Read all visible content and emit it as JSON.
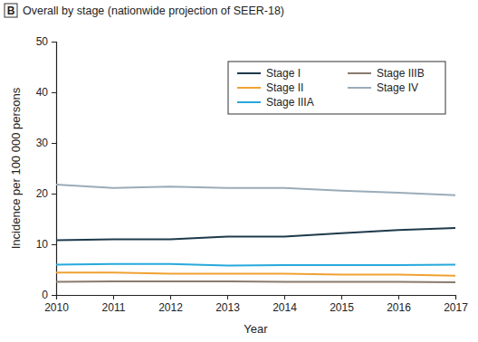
{
  "chart_data": {
    "type": "line",
    "title": "Overall by stage (nationwide projection of SEER-18)",
    "annotations": [
      "B"
    ],
    "x_label": "Year",
    "y_label": "Incidence per 100 000 persons",
    "x": [
      2010,
      2011,
      2012,
      2013,
      2014,
      2015,
      2016,
      2017
    ],
    "series": [
      {
        "name": "Stage I",
        "color": "#1e3a4c",
        "values": [
          10.8,
          11.0,
          11.0,
          11.5,
          11.5,
          12.2,
          12.8,
          13.2
        ]
      },
      {
        "name": "Stage II",
        "color": "#f0a132",
        "values": [
          4.4,
          4.4,
          4.2,
          4.2,
          4.2,
          4.0,
          4.0,
          3.8
        ]
      },
      {
        "name": "Stage IIIA",
        "color": "#27a9dc",
        "values": [
          6.0,
          6.1,
          6.1,
          5.8,
          5.9,
          5.9,
          5.9,
          6.0
        ]
      },
      {
        "name": "Stage IIIB",
        "color": "#8a7b6c",
        "values": [
          2.6,
          2.7,
          2.7,
          2.7,
          2.6,
          2.6,
          2.6,
          2.5
        ]
      },
      {
        "name": "Stage IV",
        "color": "#9aacb9",
        "values": [
          21.8,
          21.1,
          21.4,
          21.1,
          21.1,
          20.6,
          20.2,
          19.7
        ]
      }
    ],
    "xlim": [
      2010,
      2017
    ],
    "xticks": [
      2010,
      2011,
      2012,
      2013,
      2014,
      2015,
      2016,
      2017
    ],
    "ylim": [
      0,
      50
    ],
    "yticks": [
      0,
      10,
      20,
      30,
      40,
      50
    ],
    "grid": false,
    "legend": "upper right"
  }
}
